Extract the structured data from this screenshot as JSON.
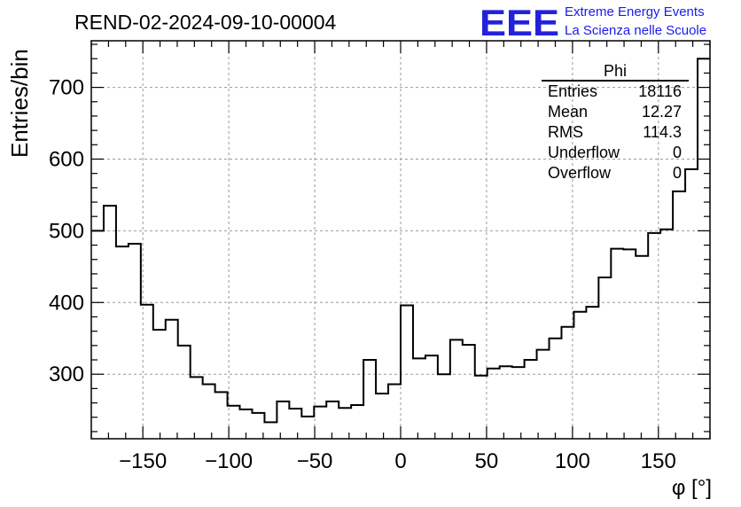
{
  "header": {
    "run_id": "REND-02-2024-09-10-00004",
    "logo_letters": "EEE",
    "logo_line1": "Extreme Energy Events",
    "logo_line2": "La Scienza nelle Scuole"
  },
  "stats_box": {
    "title": "Phi",
    "rows": [
      {
        "label": "Entries",
        "value": "18116"
      },
      {
        "label": "Mean",
        "value": "12.27"
      },
      {
        "label": "RMS",
        "value": "114.3"
      },
      {
        "label": "Underflow",
        "value": "0"
      },
      {
        "label": "Overflow",
        "value": "0"
      }
    ]
  },
  "chart_data": {
    "type": "histogram",
    "title": "REND-02-2024-09-10-00004",
    "xlabel": "φ [°]",
    "ylabel": "Entries/bin",
    "xlim": [
      -180,
      180
    ],
    "ylim": [
      210,
      765
    ],
    "bin_width": 7.2,
    "grid": true,
    "x_ticks": [
      -150,
      -100,
      -50,
      0,
      50,
      100,
      150
    ],
    "x_tick_labels": [
      "−150",
      "−100",
      "−50",
      "0",
      "50",
      "100",
      "150"
    ],
    "y_ticks": [
      300,
      400,
      500,
      600,
      700
    ],
    "y_tick_labels": [
      "300",
      "400",
      "500",
      "600",
      "700"
    ],
    "bin_edges_start": -180,
    "values": [
      500,
      535,
      478,
      482,
      397,
      362,
      376,
      340,
      296,
      286,
      275,
      256,
      251,
      246,
      233,
      262,
      252,
      241,
      255,
      262,
      253,
      257,
      320,
      273,
      286,
      396,
      322,
      326,
      300,
      348,
      341,
      298,
      308,
      311,
      310,
      320,
      334,
      350,
      366,
      387,
      394,
      435,
      475,
      474,
      465,
      497,
      502,
      555,
      586,
      740
    ],
    "line_color": "#000000"
  }
}
